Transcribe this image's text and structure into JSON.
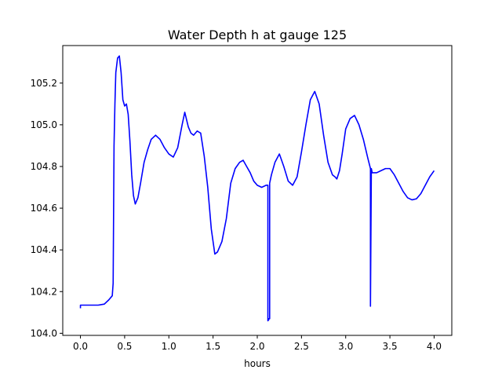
{
  "chart_data": {
    "type": "line",
    "title": "Water Depth h at gauge 125",
    "xlabel": "hours",
    "ylabel": "",
    "xlim": [
      -0.2,
      4.2
    ],
    "ylim": [
      103.99,
      105.38
    ],
    "xticks": [
      0.0,
      0.5,
      1.0,
      1.5,
      2.0,
      2.5,
      3.0,
      3.5,
      4.0
    ],
    "xtick_labels": [
      "0.0",
      "0.5",
      "1.0",
      "1.5",
      "2.0",
      "2.5",
      "3.0",
      "3.5",
      "4.0"
    ],
    "yticks": [
      104.0,
      104.2,
      104.4,
      104.6,
      104.8,
      105.0,
      105.2
    ],
    "ytick_labels": [
      "104.0",
      "104.2",
      "104.4",
      "104.6",
      "104.8",
      "105.0",
      "105.2"
    ],
    "grid": false,
    "series": [
      {
        "color": "#0000ff",
        "x": [
          0.0,
          0.0,
          0.1,
          0.2,
          0.27,
          0.32,
          0.36,
          0.37,
          0.38,
          0.39,
          0.4,
          0.42,
          0.44,
          0.46,
          0.48,
          0.5,
          0.52,
          0.54,
          0.56,
          0.58,
          0.6,
          0.62,
          0.65,
          0.68,
          0.72,
          0.76,
          0.8,
          0.85,
          0.9,
          0.95,
          1.0,
          1.05,
          1.1,
          1.15,
          1.18,
          1.22,
          1.25,
          1.28,
          1.32,
          1.36,
          1.4,
          1.44,
          1.48,
          1.52,
          1.55,
          1.6,
          1.65,
          1.7,
          1.75,
          1.8,
          1.84,
          1.88,
          1.92,
          1.96,
          2.0,
          2.05,
          2.1,
          2.12,
          2.12,
          2.13,
          2.13,
          2.14,
          2.14,
          2.16,
          2.2,
          2.25,
          2.3,
          2.35,
          2.4,
          2.45,
          2.5,
          2.55,
          2.6,
          2.65,
          2.7,
          2.75,
          2.8,
          2.85,
          2.88,
          2.9,
          2.93,
          2.96,
          3.0,
          3.05,
          3.1,
          3.15,
          3.2,
          3.25,
          3.28,
          3.28,
          3.29,
          3.29,
          3.3,
          3.35,
          3.4,
          3.45,
          3.5,
          3.55,
          3.6,
          3.65,
          3.7,
          3.75,
          3.8,
          3.85,
          3.9,
          3.95,
          4.0
        ],
        "y": [
          104.12,
          104.135,
          104.135,
          104.135,
          104.14,
          104.16,
          104.18,
          104.24,
          104.9,
          105.1,
          105.25,
          105.32,
          105.33,
          105.25,
          105.12,
          105.09,
          105.1,
          105.05,
          104.92,
          104.76,
          104.66,
          104.62,
          104.65,
          104.72,
          104.82,
          104.88,
          104.93,
          104.95,
          104.93,
          104.89,
          104.86,
          104.845,
          104.89,
          105.0,
          105.06,
          104.99,
          104.96,
          104.95,
          104.97,
          104.96,
          104.85,
          104.7,
          104.5,
          104.38,
          104.39,
          104.44,
          104.55,
          104.72,
          104.79,
          104.82,
          104.83,
          104.8,
          104.77,
          104.73,
          104.71,
          104.7,
          104.71,
          104.71,
          104.06,
          104.065,
          104.07,
          104.07,
          104.72,
          104.76,
          104.82,
          104.86,
          104.8,
          104.73,
          104.71,
          104.75,
          104.87,
          105.0,
          105.12,
          105.16,
          105.1,
          104.95,
          104.82,
          104.76,
          104.75,
          104.74,
          104.78,
          104.86,
          104.98,
          105.03,
          105.045,
          105.0,
          104.93,
          104.84,
          104.79,
          104.13,
          104.79,
          104.79,
          104.77,
          104.77,
          104.78,
          104.79,
          104.79,
          104.76,
          104.72,
          104.68,
          104.65,
          104.64,
          104.645,
          104.67,
          104.71,
          104.75,
          104.78
        ]
      }
    ]
  }
}
